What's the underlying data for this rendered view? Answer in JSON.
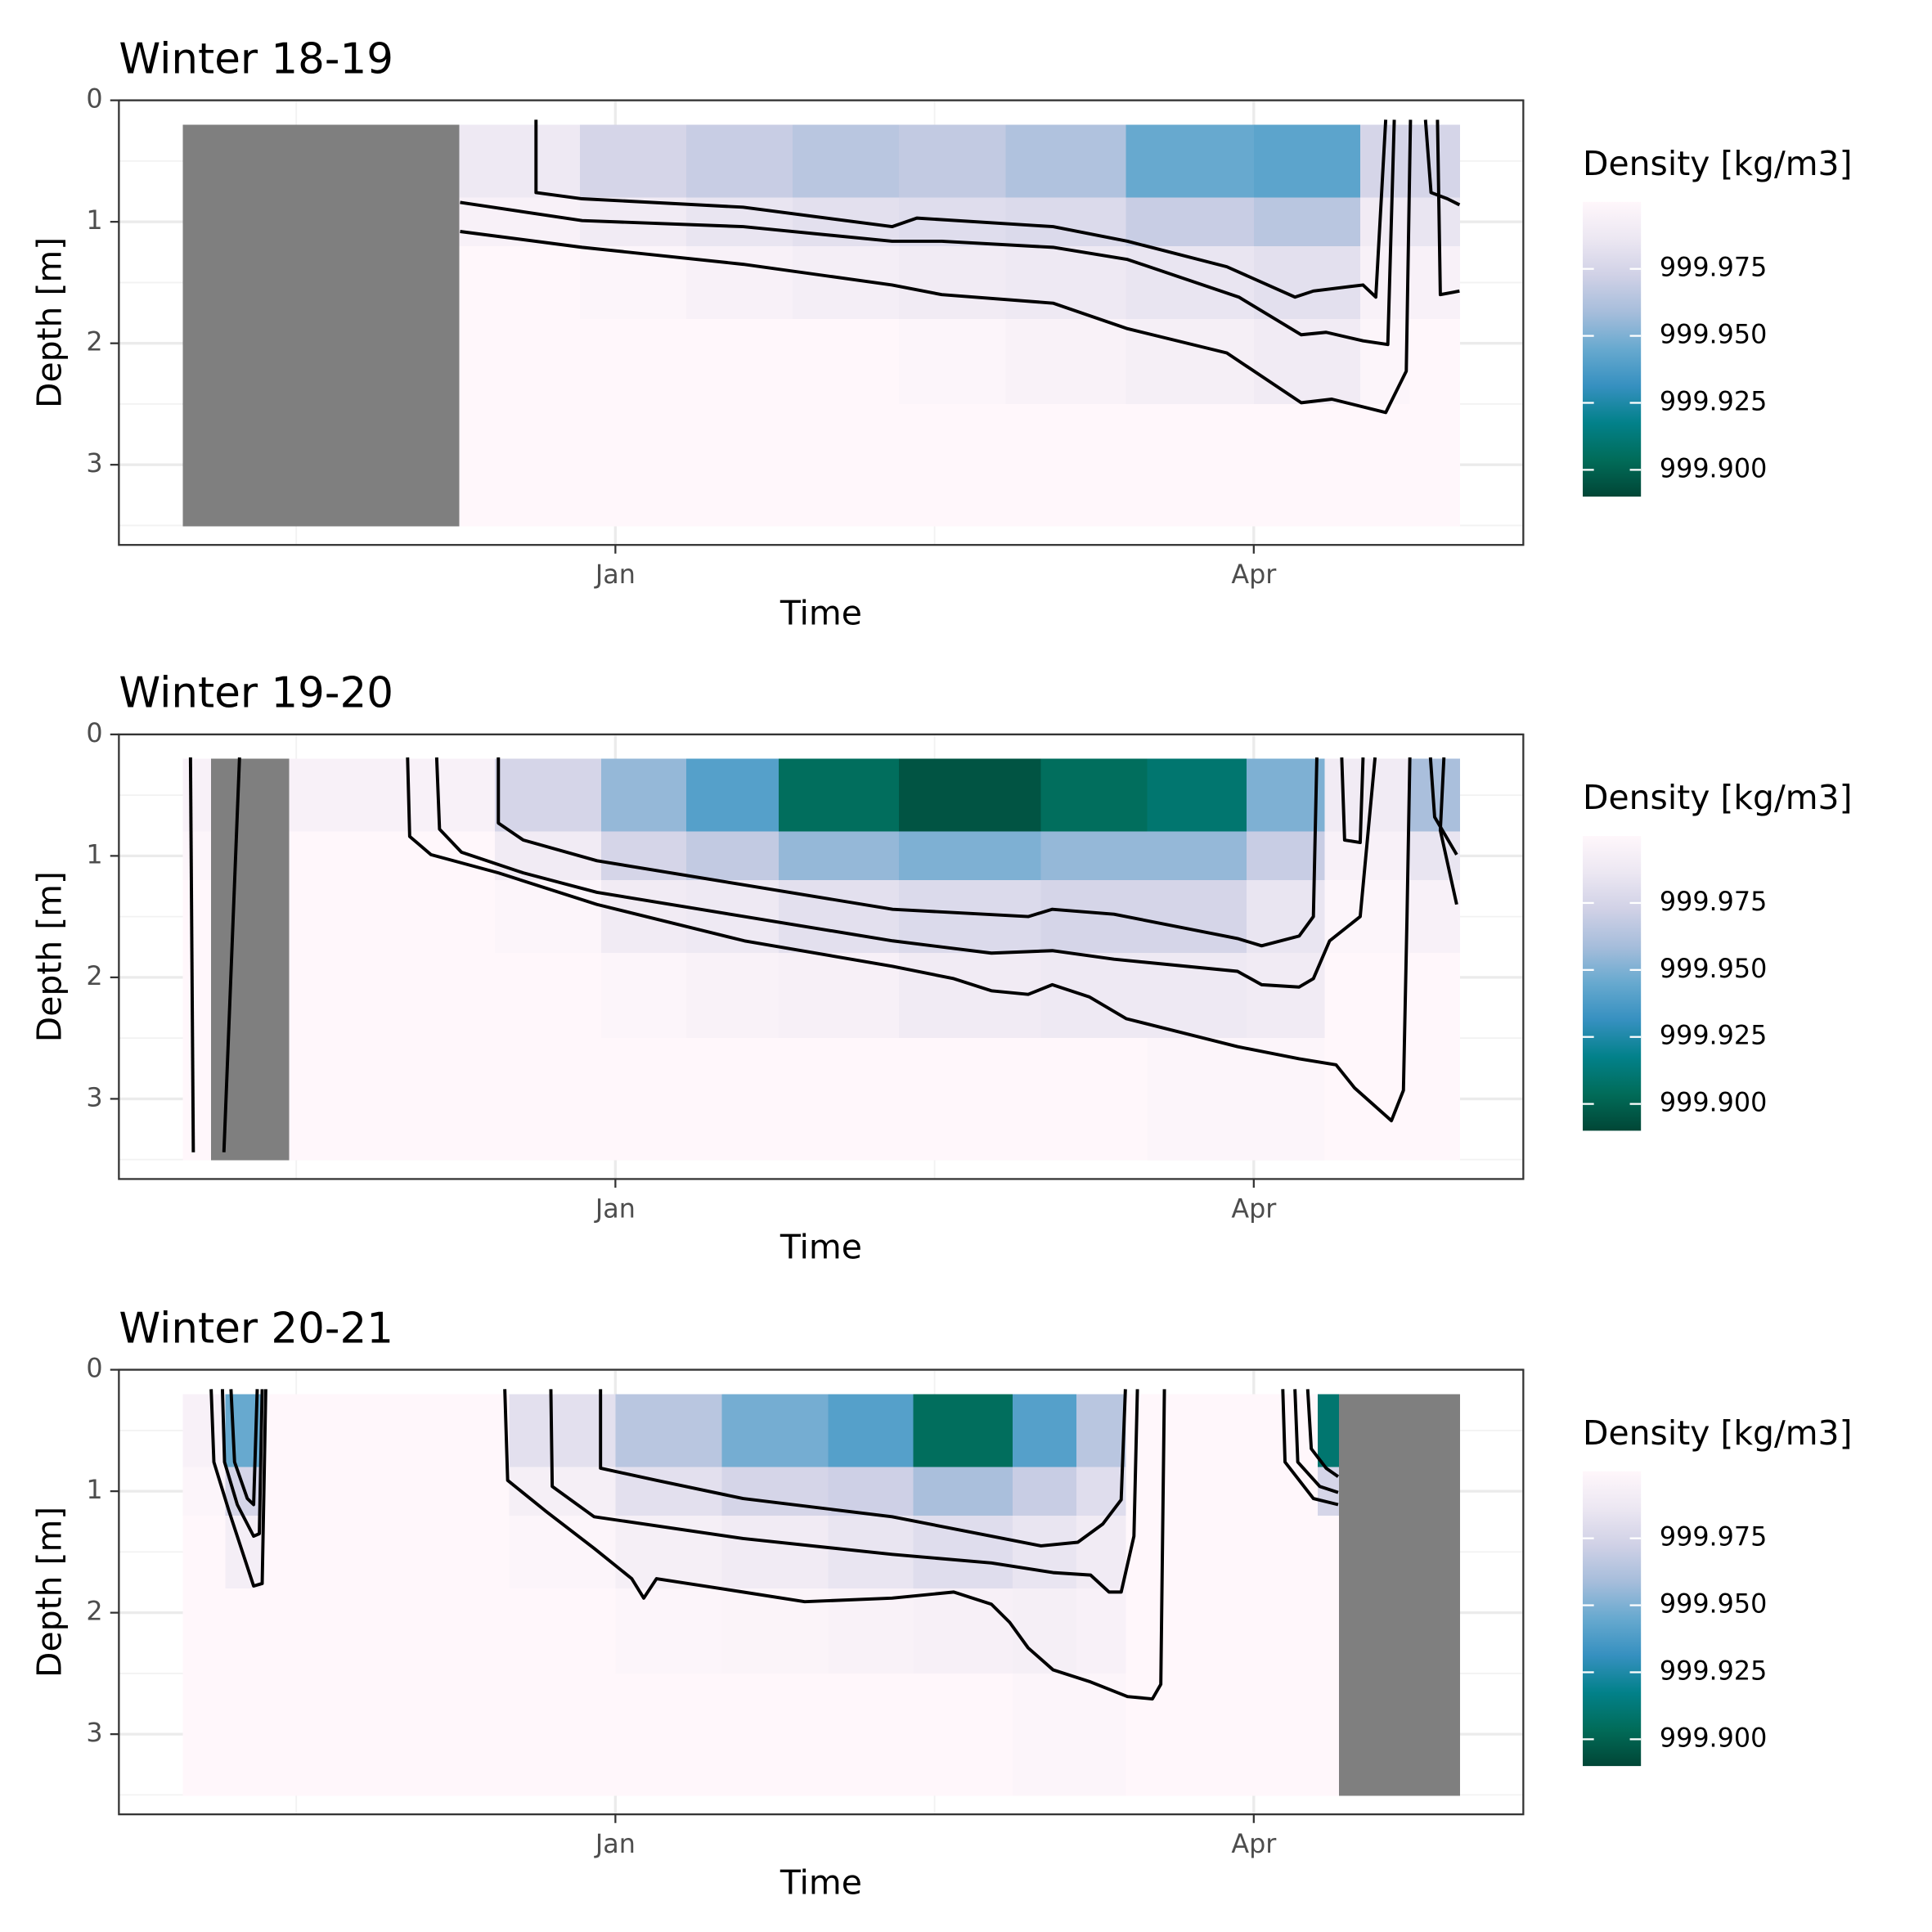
{
  "chart_data": [
    {
      "type": "heatmap",
      "title": "Winter 18-19",
      "xlabel": "Time",
      "ylabel": "Depth [m]",
      "legend_title": "Density [kg/m3]",
      "xlim": [
        -70,
        128
      ],
      "xticks": [
        {
          "value": 0,
          "label": "Jan"
        },
        {
          "value": 90,
          "label": "Apr"
        }
      ],
      "ylim": [
        0,
        3.66
      ],
      "y_reversed": true,
      "yticks": [
        0,
        1,
        2,
        3
      ],
      "grid": true,
      "clim": [
        999.89,
        1000.0
      ],
      "cticks": [
        999.975,
        {
          "value": 999.95,
          "label": "999.950"
        },
        999.925,
        {
          "value": 999.9,
          "label": "999.900"
        }
      ],
      "colors": [
        "#014636",
        "#016c59",
        "#02818a",
        "#3690c0",
        "#67a9cf",
        "#a6bddb",
        "#d0d1e6",
        "#ece7f2",
        "#fff7fb"
      ],
      "na_color": "#7f7f7f",
      "contour_color": "#000000",
      "x_edges": [
        -61,
        -22,
        -5,
        10,
        25,
        40,
        55,
        72,
        90,
        105,
        112,
        119
      ],
      "y_edges": [
        0.2,
        0.8,
        1.2,
        1.8,
        2.5,
        3.5
      ],
      "z": [
        [
          null,
          null,
          null,
          null,
          null
        ],
        [
          999.988,
          999.995,
          1000.0,
          1000.0,
          1000.0
        ],
        [
          999.975,
          999.99,
          999.998,
          1000.0,
          1000.0
        ],
        [
          999.97,
          999.985,
          999.995,
          1000.0,
          1000.0
        ],
        [
          999.965,
          999.982,
          999.992,
          1000.0,
          1000.0
        ],
        [
          999.968,
          999.98,
          999.99,
          999.998,
          1000.0
        ],
        [
          999.962,
          999.978,
          999.988,
          999.996,
          1000.0
        ],
        [
          999.945,
          999.97,
          999.985,
          999.993,
          1000.0
        ],
        [
          999.942,
          999.965,
          999.982,
          999.99,
          1000.0
        ],
        [
          999.975,
          999.99,
          999.995,
          999.998,
          1000.0
        ],
        [
          999.975,
          999.985,
          999.995,
          1000.0,
          1000.0
        ]
      ],
      "contours": [
        {
          "x": [
            -11.2,
            -11.2,
            -4.7,
            18,
            39,
            42.5,
            61.7,
            72.2,
            86.2,
            95.8,
            98.4,
            105.4,
            107.2,
            108.6
          ],
          "y": [
            0.16,
            0.76,
            0.81,
            0.88,
            1.04,
            0.97,
            1.04,
            1.16,
            1.37,
            1.62,
            1.57,
            1.52,
            1.62,
            0.16
          ]
        },
        {
          "x": [
            -21.9,
            -4.7,
            18,
            39,
            46,
            61.7,
            72.2,
            87.9,
            96.7,
            100.2,
            105.4,
            108.9,
            109.8
          ],
          "y": [
            0.84,
            0.99,
            1.04,
            1.16,
            1.16,
            1.21,
            1.31,
            1.62,
            1.93,
            1.91,
            1.98,
            2.01,
            0.16
          ]
        },
        {
          "x": [
            -21.9,
            -4.7,
            18,
            39,
            46,
            61.7,
            72.2,
            86.2,
            96.7,
            101,
            108.6,
            111.5,
            112.1
          ],
          "y": [
            1.08,
            1.21,
            1.35,
            1.52,
            1.6,
            1.67,
            1.88,
            2.08,
            2.49,
            2.46,
            2.57,
            2.23,
            0.16
          ]
        },
        {
          "x": [
            114.2,
            115,
            117.3,
            119
          ],
          "y": [
            0.16,
            0.76,
            0.81,
            0.86
          ]
        },
        {
          "x": [
            115.9,
            116.3,
            119
          ],
          "y": [
            0.16,
            1.6,
            1.57
          ]
        }
      ]
    },
    {
      "type": "heatmap",
      "title": "Winter 19-20",
      "xlabel": "Time",
      "ylabel": "Depth [m]",
      "legend_title": "Density [kg/m3]",
      "xlim": [
        -70,
        128
      ],
      "xticks": [
        {
          "value": 0,
          "label": "Jan"
        },
        {
          "value": 90,
          "label": "Apr"
        }
      ],
      "ylim": [
        0,
        3.66
      ],
      "y_reversed": true,
      "yticks": [
        0,
        1,
        2,
        3
      ],
      "grid": true,
      "clim": [
        999.89,
        1000.0
      ],
      "cticks": [
        999.975,
        {
          "value": 999.95,
          "label": "999.950"
        },
        999.925,
        {
          "value": 999.9,
          "label": "999.900"
        }
      ],
      "colors": [
        "#014636",
        "#016c59",
        "#02818a",
        "#3690c0",
        "#67a9cf",
        "#a6bddb",
        "#d0d1e6",
        "#ece7f2",
        "#fff7fb"
      ],
      "na_color": "#7f7f7f",
      "contour_color": "#000000",
      "x_edges": [
        -61,
        -57,
        -46,
        -17,
        -2,
        10,
        23,
        40,
        60,
        75,
        89,
        100,
        112,
        119
      ],
      "y_edges": [
        0.2,
        0.8,
        1.2,
        1.8,
        2.5,
        3.5
      ],
      "z": [
        [
          999.995,
          999.998,
          1000.0,
          1000.0,
          1000.0
        ],
        [
          null,
          null,
          null,
          null,
          null
        ],
        [
          999.995,
          1000.0,
          1000.0,
          1000.0,
          1000.0
        ],
        [
          999.975,
          999.99,
          999.998,
          1000.0,
          1000.0
        ],
        [
          999.955,
          999.975,
          999.99,
          999.998,
          1000.0
        ],
        [
          999.94,
          999.968,
          999.988,
          999.996,
          1000.0
        ],
        [
          999.905,
          999.955,
          999.982,
          999.994,
          1000.0
        ],
        [
          999.895,
          999.95,
          999.978,
          999.99,
          1000.0
        ],
        [
          999.905,
          999.955,
          999.975,
          999.988,
          1000.0
        ],
        [
          999.91,
          999.955,
          999.975,
          999.988,
          999.998
        ],
        [
          999.95,
          999.97,
          999.985,
          999.99,
          999.998
        ],
        [
          999.99,
          999.995,
          999.998,
          1000.0,
          1000.0
        ],
        [
          999.96,
          999.985,
          999.995,
          1000.0,
          1000.0
        ]
      ],
      "contours": [
        {
          "x": [
            -59.9,
            -59.5
          ],
          "y": [
            0.19,
            3.44
          ]
        },
        {
          "x": [
            -53,
            -55.2
          ],
          "y": [
            0.19,
            3.44
          ]
        },
        {
          "x": [
            -16.5,
            -16.5,
            -13,
            -2.6,
            18.2,
            39.1,
            58.2,
            61.6,
            70.3,
            87.7,
            91.1,
            96.4,
            98.4,
            98.9
          ],
          "y": [
            0.19,
            0.73,
            0.87,
            1.04,
            1.24,
            1.44,
            1.5,
            1.44,
            1.48,
            1.68,
            1.74,
            1.66,
            1.5,
            0.19
          ]
        },
        {
          "x": [
            -25.2,
            -24.8,
            -21.7,
            -13,
            -2.6,
            18.2,
            39.1,
            53,
            61.6,
            70.3,
            87.7,
            91.1,
            96.4,
            98.4,
            100.7,
            105,
            107.1
          ],
          "y": [
            0.19,
            0.78,
            0.97,
            1.14,
            1.3,
            1.5,
            1.7,
            1.8,
            1.78,
            1.85,
            1.95,
            2.06,
            2.08,
            2.01,
            1.7,
            1.5,
            0.19
          ]
        },
        {
          "x": [
            -29.3,
            -29,
            -26,
            -16.5,
            -2.6,
            18.2,
            39.1,
            47.7,
            53,
            58.2,
            61.6,
            66.8,
            72,
            87.7,
            96.4,
            101.6,
            104.2,
            109.4,
            111.1,
            111.6,
            112
          ],
          "y": [
            0.19,
            0.84,
            0.99,
            1.14,
            1.4,
            1.7,
            1.91,
            2.01,
            2.11,
            2.14,
            2.06,
            2.16,
            2.34,
            2.57,
            2.67,
            2.72,
            2.91,
            3.18,
            2.93,
            1.5,
            0.19
          ]
        },
        {
          "x": [
            102.4,
            102.8,
            105,
            105.4
          ],
          "y": [
            0.19,
            0.87,
            0.89,
            0.19
          ]
        },
        {
          "x": [
            114.9,
            115.5,
            118.6
          ],
          "y": [
            0.19,
            0.68,
            0.99
          ]
        },
        {
          "x": [
            116.8,
            116.3,
            118.6
          ],
          "y": [
            0.19,
            0.79,
            1.4
          ]
        }
      ]
    },
    {
      "type": "heatmap",
      "title": "Winter 20-21",
      "xlabel": "Time",
      "ylabel": "Depth [m]",
      "legend_title": "Density [kg/m3]",
      "xlim": [
        -70,
        128
      ],
      "xticks": [
        {
          "value": 0,
          "label": "Jan"
        },
        {
          "value": 90,
          "label": "Apr"
        }
      ],
      "ylim": [
        0,
        3.66
      ],
      "y_reversed": true,
      "yticks": [
        0,
        1,
        2,
        3
      ],
      "grid": true,
      "clim": [
        999.89,
        1000.0
      ],
      "cticks": [
        999.975,
        {
          "value": 999.95,
          "label": "999.950"
        },
        999.925,
        {
          "value": 999.9,
          "label": "999.900"
        }
      ],
      "colors": [
        "#014636",
        "#016c59",
        "#02818a",
        "#3690c0",
        "#67a9cf",
        "#a6bddb",
        "#d0d1e6",
        "#ece7f2",
        "#fff7fb"
      ],
      "na_color": "#7f7f7f",
      "contour_color": "#000000",
      "x_edges": [
        -61,
        -55,
        -50,
        -15,
        0,
        15,
        30,
        42,
        56,
        65,
        72,
        99,
        102,
        119
      ],
      "y_edges": [
        0.2,
        0.8,
        1.2,
        1.8,
        2.5,
        3.5
      ],
      "z": [
        [
          999.995,
          999.998,
          1000.0,
          1000.0,
          1000.0
        ],
        [
          999.945,
          999.975,
          999.992,
          1000.0,
          1000.0
        ],
        [
          1000.0,
          1000.0,
          1000.0,
          1000.0,
          1000.0
        ],
        [
          999.982,
          999.993,
          999.998,
          1000.0,
          1000.0
        ],
        [
          999.965,
          999.982,
          999.993,
          999.998,
          1000.0
        ],
        [
          999.948,
          999.975,
          999.99,
          999.997,
          1000.0
        ],
        [
          999.94,
          999.972,
          999.985,
          999.996,
          1000.0
        ],
        [
          999.905,
          999.96,
          999.98,
          999.994,
          1000.0
        ],
        [
          999.94,
          999.97,
          999.985,
          999.993,
          999.998
        ],
        [
          999.965,
          999.98,
          999.99,
          999.995,
          999.998
        ],
        [
          1000.0,
          1000.0,
          1000.0,
          1000.0,
          1000.0
        ],
        [
          999.91,
          999.975,
          1000.0,
          1000.0,
          1000.0
        ],
        [
          null,
          null,
          null,
          null,
          null
        ]
      ],
      "contours": [
        {
          "x": [
            -57,
            -56.6,
            -54.5,
            -51,
            -49.8,
            -49.3
          ],
          "y": [
            0.16,
            0.76,
            1.16,
            1.78,
            1.76,
            0.16
          ]
        },
        {
          "x": [
            -55.4,
            -55.1,
            -53.3,
            -51,
            -50.2,
            -49.8
          ],
          "y": [
            0.16,
            0.76,
            1.11,
            1.37,
            1.35,
            0.16
          ]
        },
        {
          "x": [
            -54.2,
            -53.7,
            -51.9,
            -51,
            -50.5
          ],
          "y": [
            0.16,
            0.76,
            1.06,
            1.11,
            0.16
          ]
        },
        {
          "x": [
            -2.1,
            -2.1,
            5.8,
            18,
            39,
            53,
            60,
            65.2,
            68.7,
            71.3,
            71.9
          ],
          "y": [
            0.16,
            0.81,
            0.91,
            1.06,
            1.21,
            1.37,
            1.45,
            1.42,
            1.27,
            1.07,
            0.16
          ]
        },
        {
          "x": [
            -9.1,
            -8.9,
            -3,
            18,
            39,
            53,
            61.7,
            67,
            69.6,
            71.3,
            73.1,
            73.6
          ],
          "y": [
            0.16,
            0.96,
            1.21,
            1.39,
            1.52,
            1.59,
            1.67,
            1.69,
            1.83,
            1.83,
            1.37,
            0.16
          ]
        },
        {
          "x": [
            -15.6,
            -15.2,
            -9.9,
            -3,
            2.3,
            4,
            5.8,
            18,
            26.7,
            39,
            47.7,
            53,
            55.6,
            58.2,
            61.7,
            67,
            72.2,
            75.7,
            76.9,
            77.4
          ],
          "y": [
            0.16,
            0.91,
            1.16,
            1.47,
            1.72,
            1.88,
            1.72,
            1.83,
            1.91,
            1.88,
            1.83,
            1.93,
            2.08,
            2.29,
            2.47,
            2.57,
            2.69,
            2.71,
            2.59,
            0.16
          ]
        },
        {
          "x": [
            94.1,
            94.4,
            98.4,
            101.9
          ],
          "y": [
            0.16,
            0.76,
            1.06,
            1.11
          ]
        },
        {
          "x": [
            95.8,
            96.2,
            99.3,
            101.9
          ],
          "y": [
            0.16,
            0.76,
            0.96,
            1.01
          ]
        },
        {
          "x": [
            97.6,
            98.1,
            100.2,
            101.9
          ],
          "y": [
            0.16,
            0.65,
            0.81,
            0.88
          ]
        }
      ]
    }
  ]
}
